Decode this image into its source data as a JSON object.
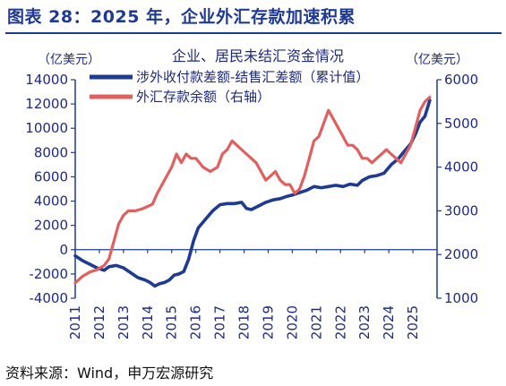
{
  "figure": {
    "title": "图表 28：2025 年，企业外汇存款加速积累",
    "source": "资料来源：Wind，申万宏源研究"
  },
  "chart_data": {
    "type": "line",
    "title": "企业、居民未结汇资金情况",
    "left_axis_unit": "（亿美元）",
    "right_axis_unit": "（亿美元）",
    "ylim_left": [
      -4000,
      14000
    ],
    "ylim_right": [
      1000,
      6000
    ],
    "xlim": [
      2011,
      2026
    ],
    "left_ticks": [
      -4000,
      -2000,
      0,
      2000,
      4000,
      6000,
      8000,
      10000,
      12000,
      14000
    ],
    "right_ticks": [
      1000,
      2000,
      3000,
      4000,
      5000,
      6000
    ],
    "x_ticks": [
      "2011",
      "2012",
      "2013",
      "2014",
      "2015",
      "2016",
      "2017",
      "2018",
      "2019",
      "2020",
      "2021",
      "2022",
      "2023",
      "2024",
      "2025"
    ],
    "legend_position": "top",
    "series": [
      {
        "name": "涉外收付款差额-结售汇差额（累计值）",
        "axis": "left",
        "color": "#1f3a93",
        "x": [
          2011.0,
          2011.3,
          2011.6,
          2011.9,
          2012.2,
          2012.4,
          2012.7,
          2013.0,
          2013.3,
          2013.6,
          2013.9,
          2014.1,
          2014.3,
          2014.5,
          2014.7,
          2014.9,
          2015.1,
          2015.3,
          2015.5,
          2015.7,
          2015.9,
          2016.1,
          2016.4,
          2016.7,
          2017.0,
          2017.3,
          2017.6,
          2017.9,
          2018.1,
          2018.3,
          2018.6,
          2018.9,
          2019.2,
          2019.5,
          2019.8,
          2020.0,
          2020.3,
          2020.6,
          2020.9,
          2021.2,
          2021.5,
          2021.8,
          2022.1,
          2022.4,
          2022.7,
          2022.9,
          2023.2,
          2023.5,
          2023.8,
          2024.1,
          2024.4,
          2024.6,
          2024.9,
          2025.1,
          2025.3,
          2025.5,
          2025.7
        ],
        "values": [
          -500,
          -900,
          -1200,
          -1500,
          -1700,
          -1400,
          -1300,
          -1500,
          -1900,
          -2300,
          -2500,
          -2700,
          -3000,
          -2800,
          -2700,
          -2500,
          -2100,
          -2000,
          -1800,
          -800,
          700,
          1800,
          2500,
          3200,
          3700,
          3800,
          3800,
          3900,
          3400,
          3300,
          3600,
          3900,
          4100,
          4200,
          4400,
          4500,
          4700,
          4900,
          5200,
          5100,
          5200,
          5300,
          5200,
          5400,
          5300,
          5700,
          6000,
          6100,
          6300,
          7000,
          7500,
          8000,
          8700,
          9500,
          10500,
          11000,
          12300
        ]
      },
      {
        "name": "外汇存款余额（右轴）",
        "axis": "right",
        "color": "#e06060",
        "x": [
          2011.0,
          2011.3,
          2011.6,
          2011.9,
          2012.2,
          2012.4,
          2012.6,
          2012.8,
          2013.0,
          2013.2,
          2013.5,
          2013.8,
          2014.0,
          2014.2,
          2014.4,
          2014.6,
          2014.8,
          2015.0,
          2015.2,
          2015.4,
          2015.6,
          2015.8,
          2016.0,
          2016.3,
          2016.6,
          2016.9,
          2017.1,
          2017.3,
          2017.5,
          2017.7,
          2017.9,
          2018.1,
          2018.3,
          2018.5,
          2018.7,
          2018.9,
          2019.1,
          2019.3,
          2019.5,
          2019.7,
          2019.9,
          2020.1,
          2020.3,
          2020.5,
          2020.7,
          2020.9,
          2021.1,
          2021.3,
          2021.5,
          2021.7,
          2021.9,
          2022.1,
          2022.3,
          2022.5,
          2022.7,
          2022.9,
          2023.1,
          2023.3,
          2023.5,
          2023.7,
          2023.9,
          2024.1,
          2024.3,
          2024.5,
          2024.7,
          2024.9,
          2025.1,
          2025.3,
          2025.5,
          2025.7
        ],
        "values": [
          1350,
          1500,
          1600,
          1650,
          1750,
          1900,
          2300,
          2700,
          2900,
          3000,
          3000,
          3050,
          3100,
          3150,
          3400,
          3600,
          3800,
          4000,
          4300,
          4100,
          4300,
          4200,
          4200,
          4000,
          3900,
          4000,
          4300,
          4400,
          4600,
          4500,
          4400,
          4300,
          4200,
          4100,
          3900,
          3700,
          3800,
          3900,
          3700,
          3600,
          3600,
          3400,
          3500,
          3800,
          4200,
          4600,
          4700,
          5000,
          5300,
          5100,
          4900,
          4700,
          4500,
          4500,
          4400,
          4200,
          4200,
          4100,
          4200,
          4300,
          4400,
          4300,
          4200,
          4100,
          4300,
          4500,
          4900,
          5300,
          5500,
          5600
        ]
      }
    ]
  }
}
